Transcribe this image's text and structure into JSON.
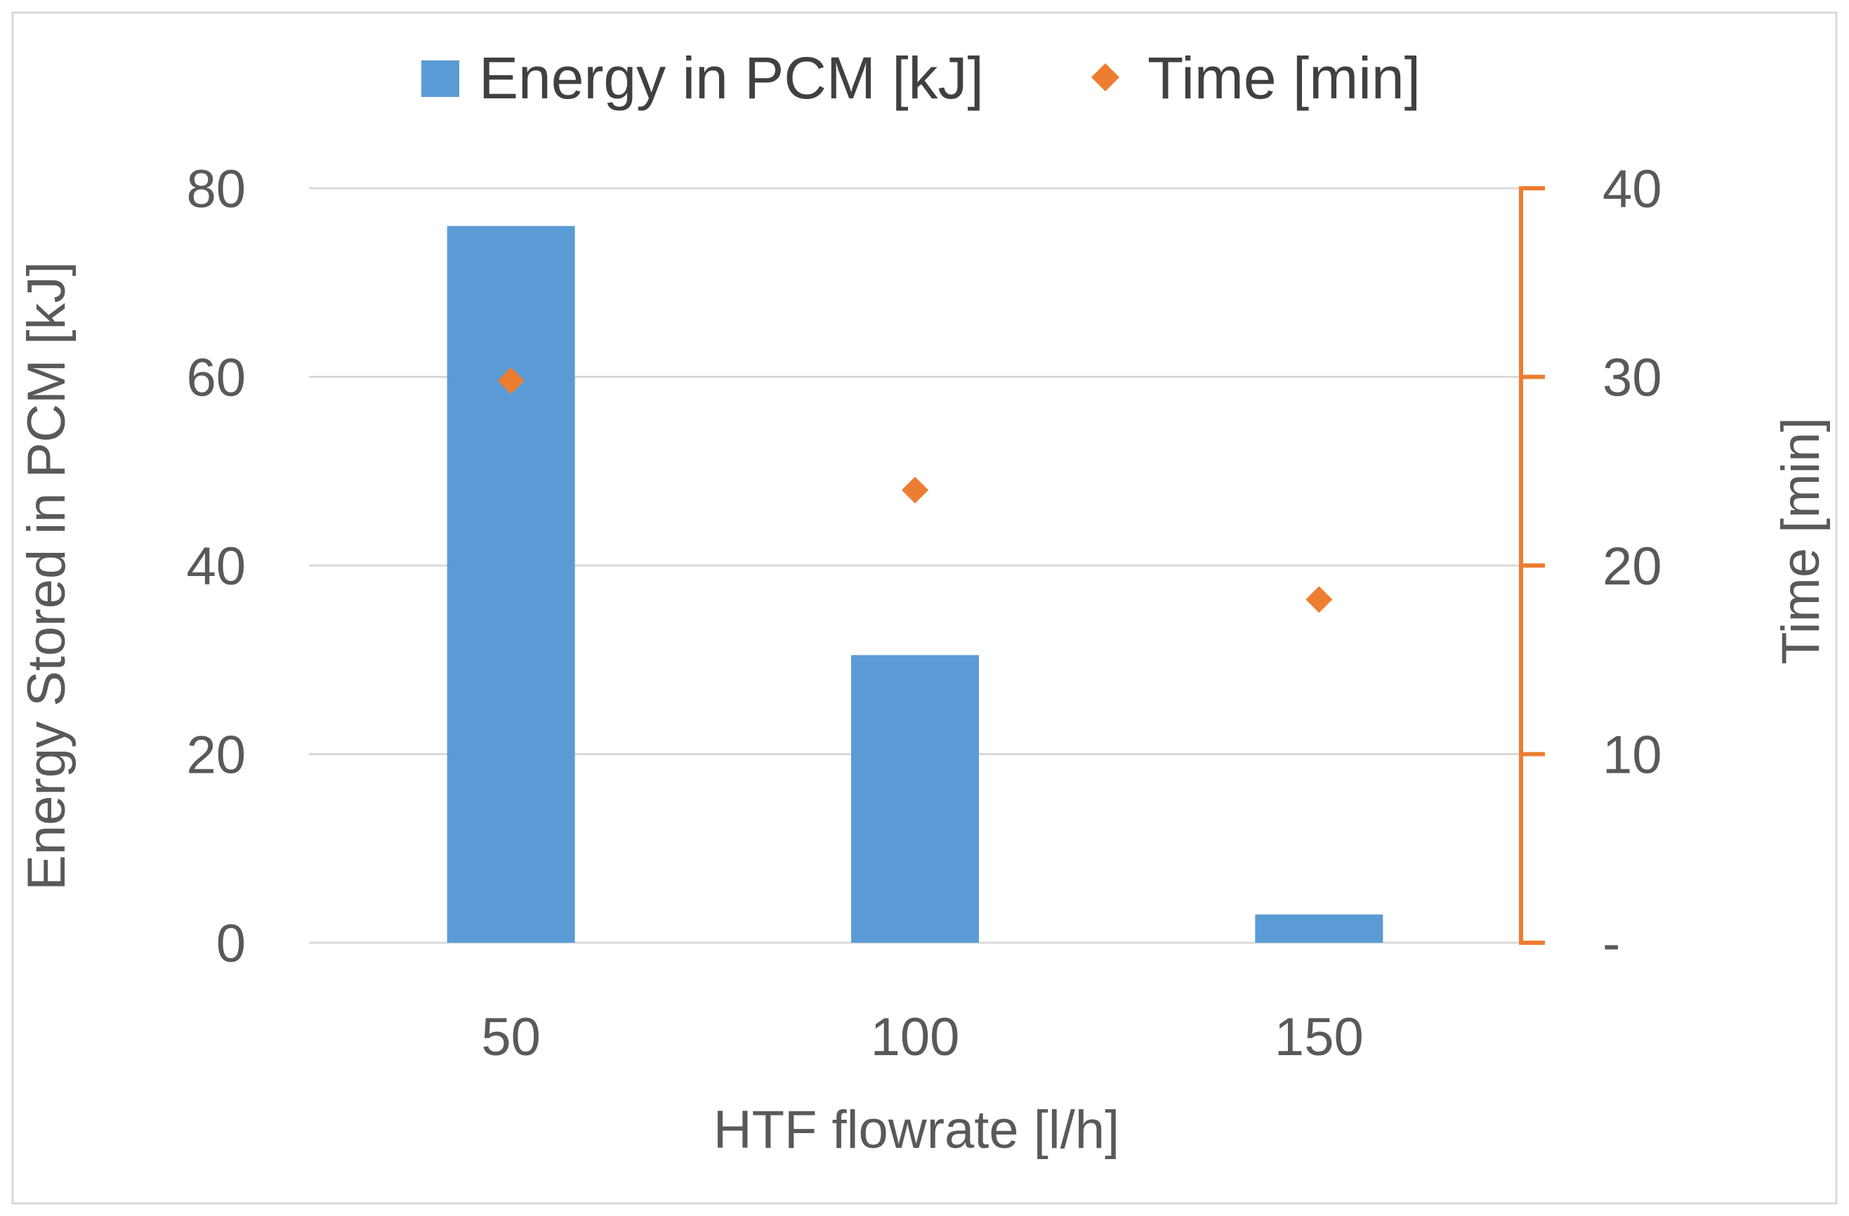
{
  "chart_data": {
    "type": "bar",
    "title": "",
    "categories": [
      "50",
      "100",
      "150"
    ],
    "xlabel": "HTF flowrate [l/h]",
    "ylabel": "Energy Stored in PCM [kJ]",
    "y2label": "Time [min]",
    "ylim": [
      0,
      80
    ],
    "y2lim": [
      0,
      40
    ],
    "yticks": [
      "0",
      "20",
      "40",
      "60",
      "80"
    ],
    "y2ticks": [
      "-",
      "10",
      "20",
      "30",
      "40"
    ],
    "grid": true,
    "legend_position": "top-center",
    "series": [
      {
        "name": "Energy in PCM [kJ]",
        "kind": "bar",
        "axis": "left",
        "color": "#5B9BD5",
        "values": [
          76,
          30.5,
          3
        ]
      },
      {
        "name": "Time [min]",
        "kind": "scatter",
        "marker": "diamond",
        "axis": "right",
        "color": "#ED7D31",
        "values": [
          29.8,
          24,
          18.2
        ]
      }
    ],
    "colors": {
      "frame": "#D9D9D9",
      "grid": "#D9D9D9",
      "secondary_axis": "#ED7D31"
    }
  }
}
